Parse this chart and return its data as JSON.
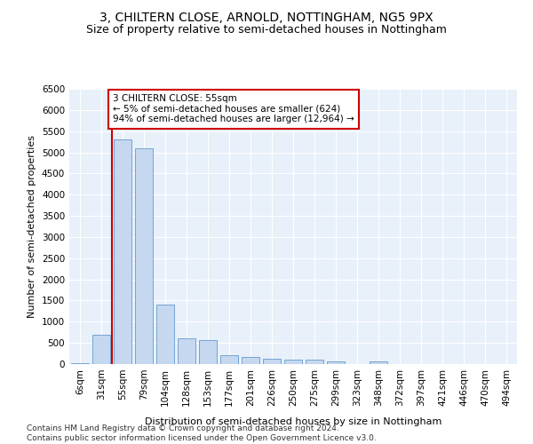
{
  "title": "3, CHILTERN CLOSE, ARNOLD, NOTTINGHAM, NG5 9PX",
  "subtitle": "Size of property relative to semi-detached houses in Nottingham",
  "xlabel": "Distribution of semi-detached houses by size in Nottingham",
  "ylabel": "Number of semi-detached properties",
  "categories": [
    "6sqm",
    "31sqm",
    "55sqm",
    "79sqm",
    "104sqm",
    "128sqm",
    "153sqm",
    "177sqm",
    "201sqm",
    "226sqm",
    "250sqm",
    "275sqm",
    "299sqm",
    "323sqm",
    "348sqm",
    "372sqm",
    "397sqm",
    "421sqm",
    "446sqm",
    "470sqm",
    "494sqm"
  ],
  "values": [
    20,
    700,
    5300,
    5100,
    1400,
    600,
    560,
    200,
    170,
    130,
    115,
    100,
    70,
    0,
    55,
    0,
    0,
    0,
    0,
    0,
    0
  ],
  "bar_color": "#c5d8f0",
  "bar_edge_color": "#6699cc",
  "highlight_bar_index": 2,
  "highlight_color": "#cc0000",
  "annotation_line1": "3 CHILTERN CLOSE: 55sqm",
  "annotation_line2": "← 5% of semi-detached houses are smaller (624)",
  "annotation_line3": "94% of semi-detached houses are larger (12,964) →",
  "annotation_box_color": "#ffffff",
  "annotation_box_edge_color": "#cc0000",
  "ylim": [
    0,
    6500
  ],
  "yticks": [
    0,
    500,
    1000,
    1500,
    2000,
    2500,
    3000,
    3500,
    4000,
    4500,
    5000,
    5500,
    6000,
    6500
  ],
  "background_color": "#e8f0fa",
  "grid_color": "#ffffff",
  "footer_text": "Contains HM Land Registry data © Crown copyright and database right 2024.\nContains public sector information licensed under the Open Government Licence v3.0.",
  "title_fontsize": 10,
  "subtitle_fontsize": 9,
  "xlabel_fontsize": 8,
  "ylabel_fontsize": 8,
  "tick_fontsize": 7.5,
  "annotation_fontsize": 7.5,
  "footer_fontsize": 6.5
}
